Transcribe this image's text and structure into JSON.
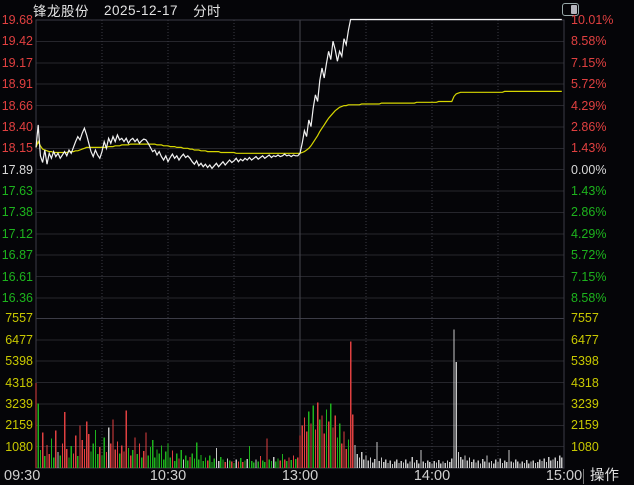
{
  "header": {
    "stock_name": "锋龙股份",
    "date": "2025-12-17",
    "chart_type": "分时"
  },
  "colors": {
    "background": "#050508",
    "up": "#e04040",
    "down": "#1db31d",
    "flat_text": "#d8d8d8",
    "neutral_bar": "#c8c8c8",
    "price_line": "#f2f2f2",
    "avg_line": "#d6d600",
    "volume_label": "#c8c800",
    "grid": "#26262c",
    "grid_bright": "#3c3c46",
    "time_label": "#cfcfcf"
  },
  "time_axis": {
    "labels": [
      "09:30",
      "10:30",
      "13:00",
      "14:00",
      "15:00"
    ],
    "action_label": "操作"
  },
  "chart_data": {
    "type": "line",
    "title": "锋龙股份 2025-12-17 分时",
    "prev_close": 17.89,
    "limit_up": 19.68,
    "limit_up_pct_label": "10.01%",
    "minutes": 240,
    "x_labels": [
      "09:30",
      "10:30",
      "13:00",
      "14:00",
      "15:00"
    ],
    "price_ticks": [
      19.68,
      19.42,
      19.17,
      18.91,
      18.66,
      18.4,
      18.15,
      17.89,
      17.63,
      17.38,
      17.12,
      16.87,
      16.61,
      16.36
    ],
    "pct_ticks": [
      "10.01%",
      "8.58%",
      "7.15%",
      "5.72%",
      "4.29%",
      "2.86%",
      "1.43%",
      "0.00%",
      "1.43%",
      "2.86%",
      "4.29%",
      "5.72%",
      "7.15%",
      "8.58%"
    ],
    "volume_ticks": [
      7557,
      6477,
      5398,
      4318,
      3239,
      2159,
      1080
    ],
    "grid": "on",
    "legend": "none",
    "series": [
      {
        "name": "price",
        "color_key": "price_line",
        "values": [
          18.15,
          18.42,
          18.05,
          17.97,
          18.12,
          17.95,
          18.08,
          18.02,
          18.1,
          18.04,
          18.08,
          18.02,
          18.06,
          18.1,
          18.05,
          18.12,
          18.08,
          18.15,
          18.22,
          18.28,
          18.24,
          18.32,
          18.38,
          18.3,
          18.2,
          18.1,
          18.04,
          18.12,
          18.06,
          18.02,
          18.1,
          18.22,
          18.14,
          18.26,
          18.2,
          18.28,
          18.22,
          18.3,
          18.24,
          18.26,
          18.22,
          18.26,
          18.2,
          18.24,
          18.26,
          18.22,
          18.25,
          18.2,
          18.23,
          18.25,
          18.24,
          18.2,
          18.15,
          18.1,
          18.12,
          18.06,
          18.1,
          18.04,
          18.0,
          18.05,
          17.98,
          18.03,
          18.07,
          18.02,
          18.05,
          18.0,
          18.04,
          18.07,
          18.03,
          18.05,
          18.02,
          17.98,
          17.95,
          17.99,
          17.93,
          17.96,
          17.92,
          17.95,
          17.91,
          17.94,
          17.9,
          17.93,
          17.96,
          17.92,
          17.95,
          17.98,
          17.94,
          17.97,
          18.0,
          17.97,
          17.99,
          18.02,
          17.98,
          18.01,
          17.99,
          18.02,
          18.0,
          18.03,
          18.0,
          18.02,
          18.04,
          18.01,
          18.03,
          18.05,
          18.02,
          18.04,
          18.06,
          18.03,
          18.05,
          18.04,
          18.06,
          18.04,
          18.05,
          18.07,
          18.05,
          18.06,
          18.04,
          18.06,
          18.05,
          18.05,
          18.08,
          18.2,
          18.35,
          18.28,
          18.48,
          18.4,
          18.62,
          18.78,
          18.7,
          18.95,
          19.1,
          18.98,
          19.15,
          19.3,
          19.2,
          19.42,
          19.32,
          19.18,
          19.3,
          19.24,
          19.45,
          19.38,
          19.55,
          19.68,
          19.68,
          19.68,
          19.68,
          19.68,
          19.68,
          19.68,
          19.68,
          19.68,
          19.68,
          19.68,
          19.68,
          19.68,
          19.68,
          19.68,
          19.68,
          19.68,
          19.68,
          19.68,
          19.68,
          19.68,
          19.68,
          19.68,
          19.68,
          19.68,
          19.68,
          19.68,
          19.68,
          19.68,
          19.68,
          19.68,
          19.68,
          19.68,
          19.68,
          19.68,
          19.68,
          19.68,
          19.68,
          19.68,
          19.68,
          19.68,
          19.68,
          19.68,
          19.68,
          19.68,
          19.68,
          19.68,
          19.68,
          19.68,
          19.68,
          19.68,
          19.68,
          19.68,
          19.68,
          19.68,
          19.68,
          19.68,
          19.68,
          19.68,
          19.68,
          19.68,
          19.68,
          19.68,
          19.68,
          19.68,
          19.68,
          19.68,
          19.68,
          19.68,
          19.68,
          19.68,
          19.68,
          19.68,
          19.68,
          19.68,
          19.68,
          19.68,
          19.68,
          19.68,
          19.68,
          19.68,
          19.68,
          19.68,
          19.68,
          19.68,
          19.68,
          19.68,
          19.68,
          19.68,
          19.68,
          19.68,
          19.68,
          19.68,
          19.68,
          19.68,
          19.68,
          19.68
        ]
      },
      {
        "name": "avg",
        "color_key": "avg_line",
        "values": [
          18.15,
          18.22,
          18.17,
          18.13,
          18.12,
          18.11,
          18.1,
          18.1,
          18.09,
          18.09,
          18.09,
          18.09,
          18.09,
          18.09,
          18.09,
          18.1,
          18.1,
          18.1,
          18.11,
          18.11,
          18.12,
          18.13,
          18.14,
          18.15,
          18.15,
          18.15,
          18.15,
          18.15,
          18.15,
          18.15,
          18.15,
          18.15,
          18.15,
          18.16,
          18.16,
          18.16,
          18.17,
          18.17,
          18.17,
          18.18,
          18.18,
          18.18,
          18.18,
          18.19,
          18.19,
          18.19,
          18.19,
          18.19,
          18.19,
          18.19,
          18.19,
          18.19,
          18.19,
          18.19,
          18.19,
          18.18,
          18.18,
          18.18,
          18.17,
          18.17,
          18.17,
          18.16,
          18.16,
          18.16,
          18.15,
          18.15,
          18.15,
          18.14,
          18.14,
          18.14,
          18.13,
          18.13,
          18.12,
          18.12,
          18.12,
          18.11,
          18.11,
          18.11,
          18.1,
          18.1,
          18.1,
          18.1,
          18.1,
          18.1,
          18.09,
          18.09,
          18.09,
          18.09,
          18.09,
          18.09,
          18.09,
          18.08,
          18.08,
          18.08,
          18.08,
          18.08,
          18.08,
          18.08,
          18.08,
          18.08,
          18.08,
          18.08,
          18.08,
          18.08,
          18.08,
          18.08,
          18.08,
          18.08,
          18.08,
          18.08,
          18.08,
          18.08,
          18.08,
          18.08,
          18.08,
          18.08,
          18.08,
          18.08,
          18.08,
          18.08,
          18.08,
          18.09,
          18.1,
          18.12,
          18.14,
          18.17,
          18.21,
          18.25,
          18.29,
          18.34,
          18.38,
          18.42,
          18.46,
          18.5,
          18.53,
          18.56,
          18.59,
          18.61,
          18.63,
          18.64,
          18.65,
          18.65,
          18.66,
          18.66,
          18.66,
          18.66,
          18.66,
          18.66,
          18.67,
          18.67,
          18.67,
          18.67,
          18.67,
          18.67,
          18.67,
          18.67,
          18.67,
          18.68,
          18.68,
          18.68,
          18.68,
          18.68,
          18.68,
          18.68,
          18.68,
          18.68,
          18.68,
          18.68,
          18.68,
          18.68,
          18.68,
          18.68,
          18.68,
          18.69,
          18.69,
          18.69,
          18.69,
          18.69,
          18.69,
          18.69,
          18.69,
          18.69,
          18.69,
          18.7,
          18.7,
          18.7,
          18.7,
          18.7,
          18.7,
          18.7,
          18.76,
          18.79,
          18.8,
          18.81,
          18.81,
          18.81,
          18.81,
          18.81,
          18.81,
          18.81,
          18.81,
          18.81,
          18.81,
          18.81,
          18.81,
          18.81,
          18.81,
          18.81,
          18.81,
          18.81,
          18.81,
          18.81,
          18.81,
          18.82,
          18.82,
          18.82,
          18.82,
          18.82,
          18.82,
          18.82,
          18.82,
          18.82,
          18.82,
          18.82,
          18.82,
          18.82,
          18.82,
          18.82,
          18.82,
          18.82,
          18.82,
          18.82,
          18.82,
          18.82,
          18.82,
          18.82,
          18.82,
          18.82,
          18.82,
          18.82
        ]
      }
    ],
    "volume": {
      "unit_per_tick": 1080,
      "directions_legend": {
        "r": "up",
        "g": "down",
        "w": "flat"
      },
      "values": [
        4300,
        3250,
        900,
        1800,
        600,
        1150,
        700,
        1500,
        520,
        1900,
        820,
        640,
        1250,
        2820,
        950,
        520,
        1120,
        730,
        1640,
        600,
        2150,
        1420,
        950,
        2340,
        1720,
        830,
        1250,
        1930,
        700,
        1050,
        620,
        1530,
        800,
        2050,
        1230,
        2440,
        930,
        1340,
        720,
        1130,
        840,
        2900,
        1020,
        640,
        920,
        1530,
        700,
        1230,
        540,
        860,
        1800,
        640,
        1050,
        1420,
        540,
        930,
        720,
        1140,
        430,
        840,
        1230,
        530,
        880,
        360,
        720,
        480,
        900,
        420,
        640,
        380,
        560,
        740,
        480,
        1300,
        420,
        660,
        350,
        540,
        380,
        620,
        300,
        480,
        1000,
        360,
        550,
        420,
        300,
        480,
        380,
        320,
        260,
        420,
        330,
        500,
        300,
        380,
        460,
        1100,
        350,
        280,
        420,
        330,
        610,
        380,
        300,
        1500,
        420,
        350,
        560,
        330,
        480,
        390,
        700,
        420,
        360,
        540,
        400,
        640,
        460,
        520,
        1650,
        2150,
        2550,
        1850,
        2850,
        2250,
        3150,
        1950,
        3300,
        2450,
        2650,
        1750,
        2950,
        2350,
        3250,
        2050,
        2650,
        1550,
        2250,
        1250,
        1850,
        950,
        1450,
        6400,
        2700,
        1150,
        700,
        520,
        820,
        440,
        640,
        380,
        520,
        290,
        450,
        1320,
        360,
        540,
        300,
        420,
        260,
        380,
        200,
        330,
        440,
        250,
        360,
        290,
        420,
        230,
        330,
        560,
        280,
        400,
        240,
        900,
        320,
        260,
        380,
        300,
        230,
        350,
        270,
        400,
        220,
        330,
        260,
        390,
        300,
        480,
        7000,
        5350,
        820,
        560,
        430,
        640,
        380,
        520,
        300,
        440,
        280,
        380,
        240,
        460,
        320,
        620,
        280,
        360,
        240,
        420,
        300,
        480,
        260,
        380,
        300,
        920,
        340,
        280,
        440,
        320,
        230,
        340,
        260,
        400,
        220,
        320,
        380,
        260,
        300,
        420,
        350,
        480,
        300,
        560,
        380,
        440,
        520,
        360,
        620,
        540
      ],
      "directions": "rggrgrrggrwgrrrggrrgrrrrrggggrggrwrrrrgrrrgrgrgrgrrgggggggggggrggrgwggrgggggggrgggwwggrwgrgwrgrgwgggwgrggrggwggrgrgrgrgrrrrrgrgrrgrrgrgrrggrrrgrrwwwwwwwwwwwwwwwwwwwwwwwwwwwwwwwwwwwwwwwwwwwwwwwwwwwwwwwwwwwwwwwwwwwwwwwwwwwwwwwwwwwwwwwwwwwwwwww"
    }
  }
}
